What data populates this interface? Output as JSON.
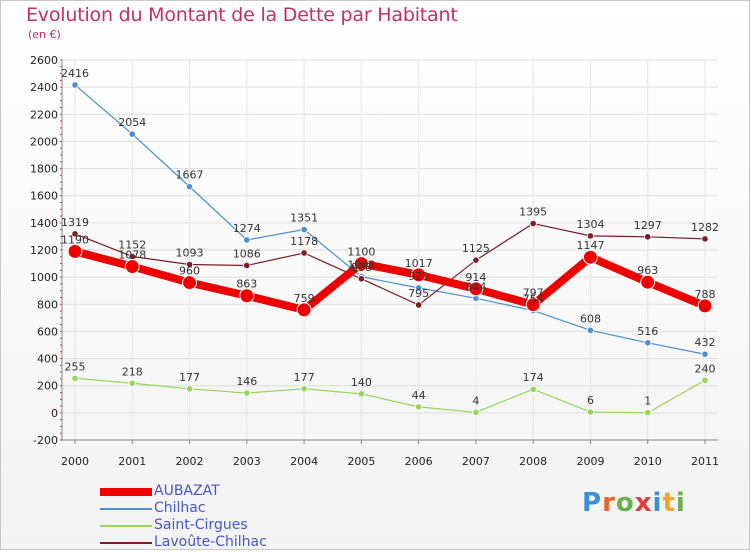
{
  "header": {
    "title": "Evolution du Montant de la Dette par Habitant",
    "subtitle": "(en €)"
  },
  "brand": {
    "letters": [
      "P",
      "r",
      "o",
      "x",
      "i",
      "t",
      "i"
    ],
    "colors": [
      "#3a8fd6",
      "#e8632a",
      "#6ab04c",
      "#e23c3c",
      "#3a8fd6",
      "#f2a52a",
      "#6ab04c"
    ]
  },
  "chart_data": {
    "type": "line",
    "title": "Evolution du Montant de la Dette par Habitant",
    "ylabel": "(en €)",
    "xlabel": "",
    "x": [
      "2000",
      "2001",
      "2002",
      "2003",
      "2004",
      "2005",
      "2006",
      "2007",
      "2008",
      "2009",
      "2010",
      "2011"
    ],
    "ylim": [
      -200,
      2600
    ],
    "yticks": [
      -200,
      0,
      200,
      400,
      600,
      800,
      1000,
      1200,
      1400,
      1600,
      1800,
      2000,
      2200,
      2400,
      2600
    ],
    "grid": true,
    "legend": "bottom-left",
    "series": [
      {
        "name": "AUBAZAT",
        "color": "#ee0000",
        "values": [
          1190,
          1078,
          960,
          863,
          759,
          1100,
          1017,
          914,
          797,
          1147,
          963,
          788
        ],
        "labels": [
          "1190",
          "1078",
          "960",
          "863",
          "759",
          "1100",
          "1017",
          "914",
          "797",
          "1147",
          "963",
          "788"
        ]
      },
      {
        "name": "Chilhac",
        "color": "#4a8fd0",
        "values": [
          2416,
          2054,
          1667,
          1274,
          1351,
          1003,
          921,
          844,
          754,
          608,
          516,
          432
        ],
        "labels": [
          "2416",
          "2054",
          "1667",
          "1274",
          "1351",
          "1003",
          "921",
          "844",
          "754",
          "608",
          "516",
          "432"
        ]
      },
      {
        "name": "Saint-Cirgues",
        "color": "#93d65a",
        "values": [
          255,
          218,
          177,
          146,
          177,
          140,
          44,
          4,
          174,
          6,
          1,
          240
        ],
        "labels": [
          "255",
          "218",
          "177",
          "146",
          "177",
          "140",
          "44",
          "4",
          "174",
          "6",
          "1",
          "240"
        ]
      },
      {
        "name": "Lavoûte-Chilhac",
        "color": "#7a1e24",
        "values": [
          1319,
          1152,
          1093,
          1086,
          1178,
          988,
          795,
          1125,
          1395,
          1304,
          1297,
          1282
        ],
        "labels": [
          "1319",
          "1152",
          "1093",
          "1086",
          "1178",
          "988",
          "795",
          "1125",
          "1395",
          "1304",
          "1297",
          "1282"
        ]
      }
    ]
  }
}
